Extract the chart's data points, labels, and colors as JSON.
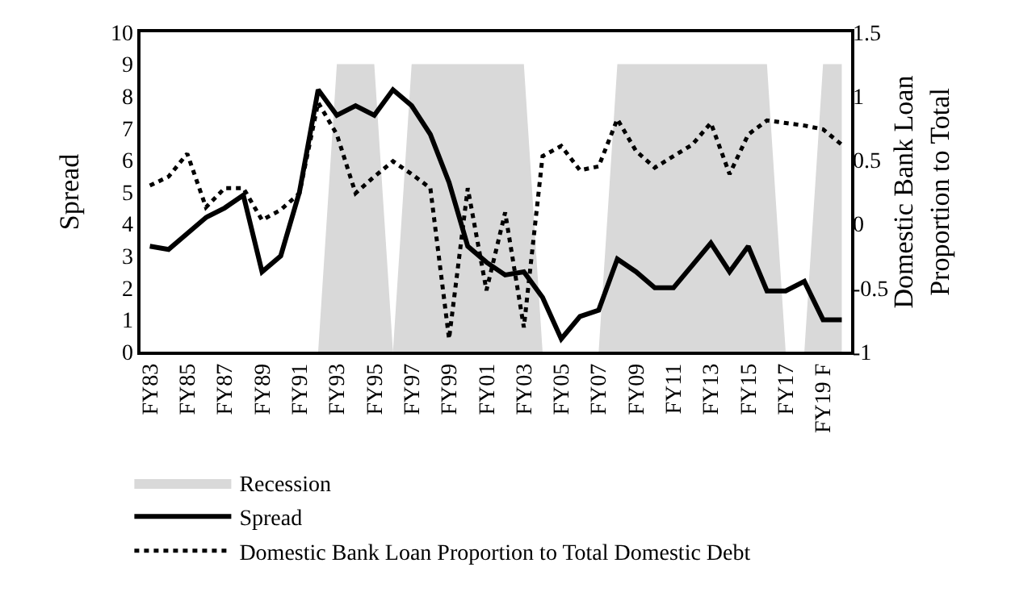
{
  "chart_data": {
    "type": "line",
    "ylabel": "Spread",
    "y2label": "Domestic Bank Loan Proportion to Total",
    "categories": [
      "FY83",
      null,
      "FY85",
      null,
      "FY87",
      null,
      "FY89",
      null,
      "FY91",
      null,
      "FY93",
      null,
      "FY95",
      null,
      "FY97",
      null,
      "FY99",
      null,
      "FY01",
      null,
      "FY03",
      null,
      "FY05",
      null,
      "FY07",
      null,
      "FY09",
      null,
      "FY11",
      null,
      "FY13",
      null,
      "FY15",
      null,
      "FY17",
      null,
      "FY19 F",
      null
    ],
    "series": [
      {
        "name": "Recession",
        "type": "area",
        "color": "#d9d9d9",
        "values": [
          0,
          0,
          0,
          0,
          0,
          0,
          0,
          0,
          0,
          0,
          9,
          9,
          9,
          0,
          9,
          9,
          9,
          9,
          9,
          9,
          9,
          0,
          0,
          0,
          0,
          9,
          9,
          9,
          9,
          9,
          9,
          9,
          9,
          9,
          0,
          0,
          9,
          9
        ]
      },
      {
        "name": "Spread",
        "color": "#000000",
        "line_style": "solid",
        "values": [
          3.3,
          3.2,
          3.7,
          4.2,
          4.5,
          4.9,
          2.5,
          3.0,
          5.0,
          8.2,
          7.4,
          7.7,
          7.4,
          8.2,
          7.7,
          6.8,
          5.3,
          3.3,
          2.8,
          2.4,
          2.5,
          1.7,
          0.4,
          1.1,
          1.3,
          2.9,
          2.5,
          2.0,
          2.0,
          2.7,
          3.4,
          2.5,
          3.3,
          1.9,
          1.9,
          2.2,
          1.0,
          1.0
        ]
      },
      {
        "name": "Domestic Bank Loan Proportion to Total Domestic Debt",
        "axis": "y2",
        "color": "#000000",
        "line_style": "dotted",
        "values": [
          0.3,
          0.37,
          0.55,
          0.13,
          0.28,
          0.28,
          0.03,
          0.11,
          0.24,
          0.95,
          0.7,
          0.24,
          0.37,
          0.49,
          0.39,
          0.28,
          -0.9,
          0.28,
          -0.52,
          0.09,
          -0.81,
          0.53,
          0.61,
          0.42,
          0.45,
          0.82,
          0.57,
          0.44,
          0.53,
          0.62,
          0.79,
          0.39,
          0.7,
          0.81,
          0.79,
          0.77,
          0.74,
          0.62
        ]
      }
    ],
    "ylim": [
      0,
      10
    ],
    "yticks": [
      0,
      1,
      2,
      3,
      4,
      5,
      6,
      7,
      8,
      9,
      10
    ],
    "y2lim": [
      -1,
      1.5
    ],
    "y2ticks": [
      -1,
      -0.5,
      0,
      0.5,
      1,
      1.5
    ],
    "grid": false,
    "legend": "bottom",
    "marker": "none"
  }
}
